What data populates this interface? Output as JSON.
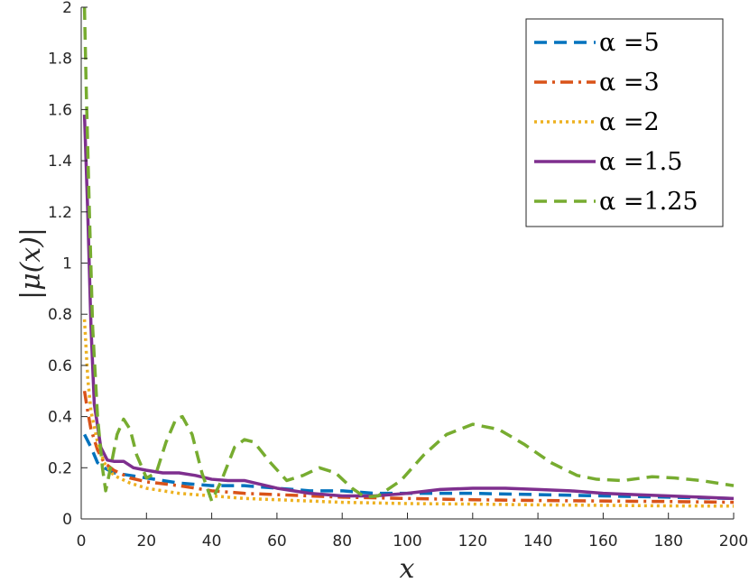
{
  "chart_data": {
    "type": "line",
    "xlabel": "x",
    "ylabel": "|μ(x)|",
    "xlim": [
      0,
      200
    ],
    "ylim": [
      0,
      2
    ],
    "xticks": [
      0,
      20,
      40,
      60,
      80,
      100,
      120,
      140,
      160,
      180,
      200
    ],
    "yticks": [
      0,
      0.2,
      0.4,
      0.6,
      0.8,
      1,
      1.2,
      1.4,
      1.6,
      1.8,
      2
    ],
    "ytick_labels": [
      "0",
      "0.2",
      "0.4",
      "0.6",
      "0.8",
      "1",
      "1.2",
      "1.4",
      "1.6",
      "1.8",
      "2"
    ],
    "grid": false,
    "legend_position": "top-right",
    "series": [
      {
        "name": "α =5",
        "color": "#0072BD",
        "dash": "dashed",
        "points": [
          [
            1,
            0.33
          ],
          [
            3,
            0.28
          ],
          [
            5,
            0.22
          ],
          [
            7,
            0.2
          ],
          [
            10,
            0.18
          ],
          [
            15,
            0.17
          ],
          [
            20,
            0.16
          ],
          [
            30,
            0.14
          ],
          [
            40,
            0.13
          ],
          [
            50,
            0.13
          ],
          [
            60,
            0.12
          ],
          [
            70,
            0.11
          ],
          [
            80,
            0.11
          ],
          [
            90,
            0.1
          ],
          [
            100,
            0.1
          ],
          [
            120,
            0.1
          ],
          [
            140,
            0.095
          ],
          [
            160,
            0.09
          ],
          [
            180,
            0.085
          ],
          [
            200,
            0.08
          ]
        ]
      },
      {
        "name": "α =3",
        "color": "#D95319",
        "dash": "dashdot",
        "points": [
          [
            1,
            0.5
          ],
          [
            2,
            0.42
          ],
          [
            3,
            0.35
          ],
          [
            5,
            0.27
          ],
          [
            7,
            0.22
          ],
          [
            10,
            0.19
          ],
          [
            15,
            0.16
          ],
          [
            20,
            0.145
          ],
          [
            30,
            0.13
          ],
          [
            40,
            0.11
          ],
          [
            50,
            0.1
          ],
          [
            60,
            0.095
          ],
          [
            80,
            0.085
          ],
          [
            100,
            0.08
          ],
          [
            120,
            0.075
          ],
          [
            140,
            0.072
          ],
          [
            160,
            0.07
          ],
          [
            180,
            0.068
          ],
          [
            200,
            0.065
          ]
        ]
      },
      {
        "name": "α =2",
        "color": "#EDB120",
        "dash": "dotted",
        "points": [
          [
            1,
            0.78
          ],
          [
            2,
            0.55
          ],
          [
            3,
            0.42
          ],
          [
            5,
            0.3
          ],
          [
            7,
            0.22
          ],
          [
            10,
            0.17
          ],
          [
            15,
            0.14
          ],
          [
            20,
            0.12
          ],
          [
            30,
            0.1
          ],
          [
            40,
            0.09
          ],
          [
            50,
            0.08
          ],
          [
            60,
            0.075
          ],
          [
            80,
            0.065
          ],
          [
            100,
            0.06
          ],
          [
            120,
            0.058
          ],
          [
            140,
            0.055
          ],
          [
            160,
            0.053
          ],
          [
            180,
            0.051
          ],
          [
            200,
            0.05
          ]
        ]
      },
      {
        "name": "α =1.5",
        "color": "#7E2F8E",
        "dash": "solid",
        "points": [
          [
            1,
            1.58
          ],
          [
            2,
            1.2
          ],
          [
            3,
            0.75
          ],
          [
            4,
            0.45
          ],
          [
            6,
            0.28
          ],
          [
            8,
            0.23
          ],
          [
            10,
            0.225
          ],
          [
            13,
            0.225
          ],
          [
            16,
            0.2
          ],
          [
            20,
            0.19
          ],
          [
            25,
            0.18
          ],
          [
            30,
            0.18
          ],
          [
            35,
            0.17
          ],
          [
            40,
            0.155
          ],
          [
            45,
            0.15
          ],
          [
            50,
            0.15
          ],
          [
            60,
            0.12
          ],
          [
            70,
            0.1
          ],
          [
            80,
            0.09
          ],
          [
            90,
            0.09
          ],
          [
            100,
            0.1
          ],
          [
            110,
            0.115
          ],
          [
            120,
            0.12
          ],
          [
            130,
            0.12
          ],
          [
            140,
            0.115
          ],
          [
            150,
            0.11
          ],
          [
            160,
            0.1
          ],
          [
            170,
            0.095
          ],
          [
            180,
            0.09
          ],
          [
            190,
            0.085
          ],
          [
            200,
            0.08
          ]
        ]
      },
      {
        "name": "α =1.25",
        "color": "#77AC30",
        "dash": "dashed",
        "points": [
          [
            1,
            2.0
          ],
          [
            1.5,
            1.7
          ],
          [
            2.5,
            1.2
          ],
          [
            3.5,
            0.75
          ],
          [
            5,
            0.4
          ],
          [
            6.5,
            0.2
          ],
          [
            7.5,
            0.11
          ],
          [
            9,
            0.2
          ],
          [
            11,
            0.33
          ],
          [
            13,
            0.39
          ],
          [
            15,
            0.35
          ],
          [
            17,
            0.25
          ],
          [
            20,
            0.16
          ],
          [
            23,
            0.18
          ],
          [
            26,
            0.3
          ],
          [
            29,
            0.39
          ],
          [
            31,
            0.4
          ],
          [
            34,
            0.33
          ],
          [
            37,
            0.18
          ],
          [
            40,
            0.07
          ],
          [
            43,
            0.15
          ],
          [
            47,
            0.28
          ],
          [
            50,
            0.31
          ],
          [
            53,
            0.3
          ],
          [
            58,
            0.22
          ],
          [
            63,
            0.15
          ],
          [
            68,
            0.17
          ],
          [
            73,
            0.2
          ],
          [
            78,
            0.18
          ],
          [
            83,
            0.12
          ],
          [
            87,
            0.085
          ],
          [
            91,
            0.09
          ],
          [
            98,
            0.15
          ],
          [
            105,
            0.25
          ],
          [
            112,
            0.33
          ],
          [
            120,
            0.37
          ],
          [
            128,
            0.35
          ],
          [
            136,
            0.29
          ],
          [
            144,
            0.22
          ],
          [
            152,
            0.17
          ],
          [
            158,
            0.155
          ],
          [
            166,
            0.15
          ],
          [
            175,
            0.165
          ],
          [
            182,
            0.16
          ],
          [
            190,
            0.15
          ],
          [
            200,
            0.13
          ]
        ]
      }
    ]
  }
}
